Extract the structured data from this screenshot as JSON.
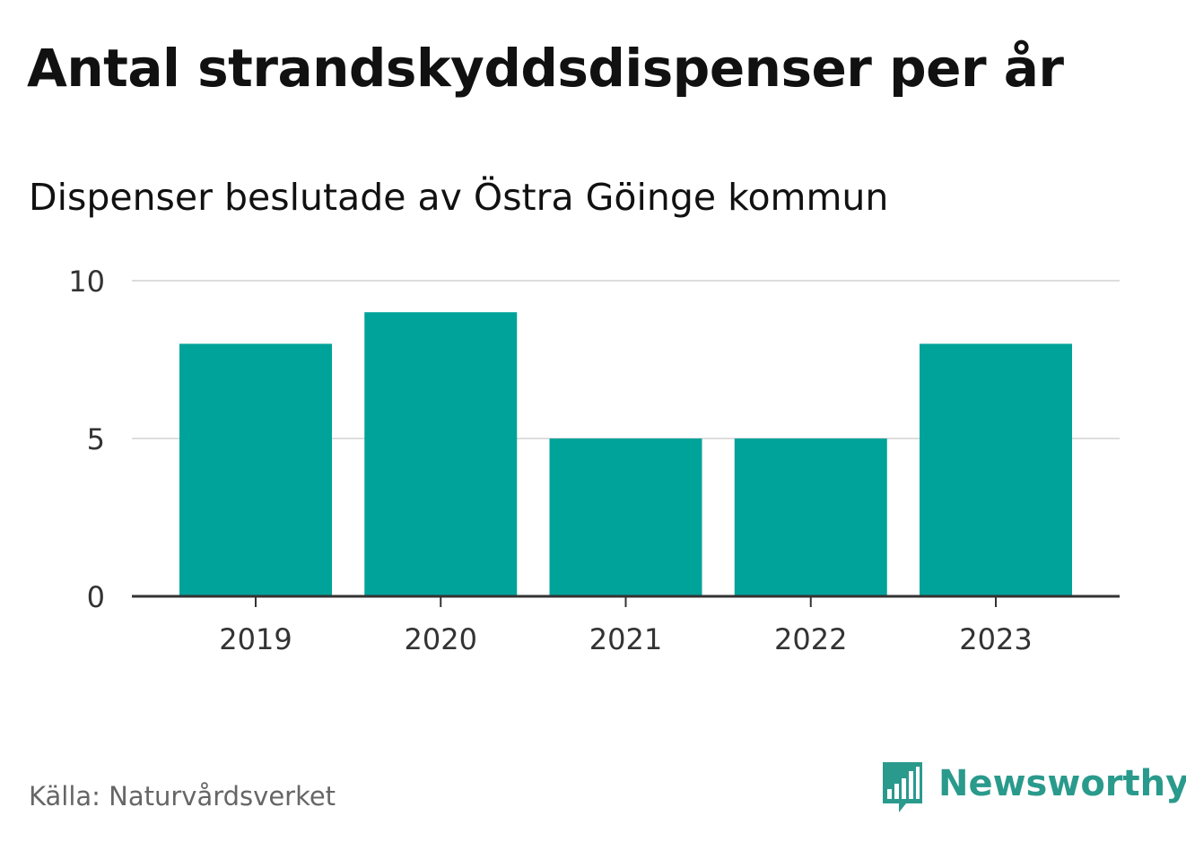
{
  "title": "Antal strandskyddsdispenser per år",
  "subtitle": "Dispenser beslutade av Östra Göinge kommun",
  "source": "Källa: Naturvårdsverket",
  "brand": {
    "name": "Newsworthy",
    "logo_icon": "chart-speech-bubble-icon",
    "color": "#2a9a8c"
  },
  "colors": {
    "bar": "#00a39a",
    "grid": "#dddddd",
    "axis": "#333333",
    "tick_label": "#333333"
  },
  "chart_data": {
    "type": "bar",
    "title": "Antal strandskyddsdispenser per år",
    "subtitle": "Dispenser beslutade av Östra Göinge kommun",
    "categories": [
      "2019",
      "2020",
      "2021",
      "2022",
      "2023"
    ],
    "values": [
      8,
      9,
      5,
      5,
      8
    ],
    "xlabel": "",
    "ylabel": "",
    "ylim": [
      0,
      10
    ],
    "yticks": [
      0,
      5,
      10
    ],
    "ytick_labels": [
      "0",
      "5",
      "10"
    ],
    "grid": true,
    "legend": "none"
  }
}
